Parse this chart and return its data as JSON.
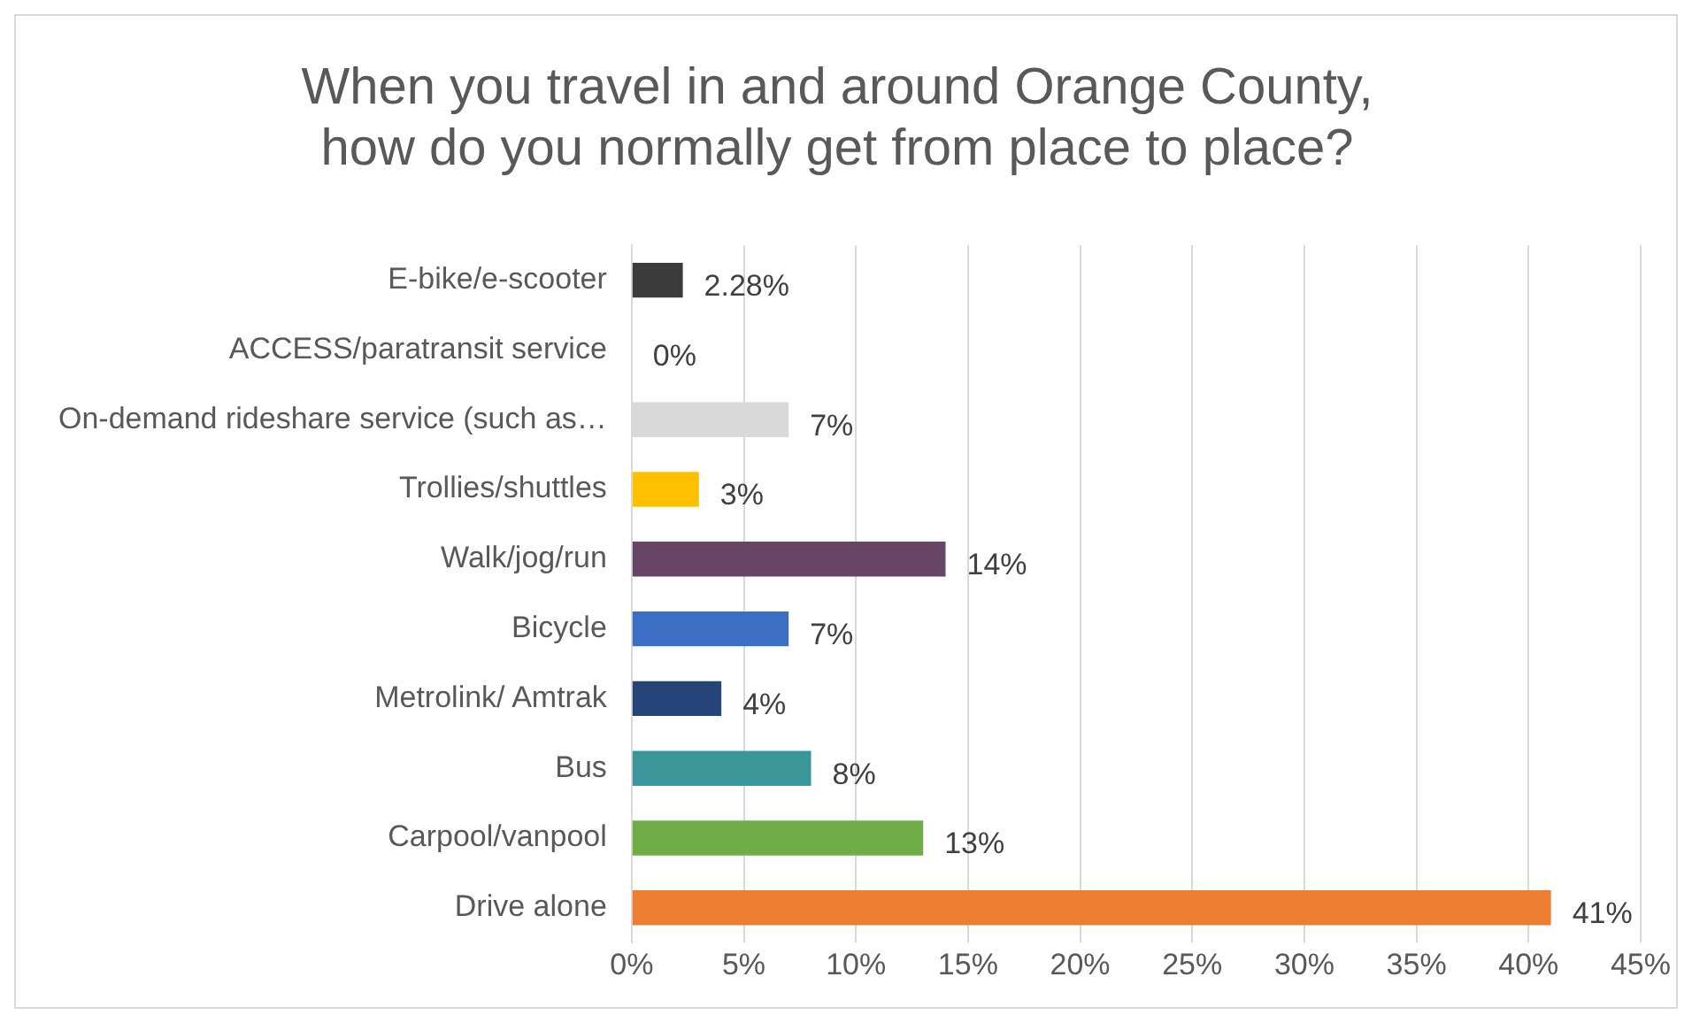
{
  "chart_data": {
    "type": "bar",
    "orientation": "horizontal",
    "title": [
      "When you travel in and around Orange County,",
      "how do you normally get from place to place?"
    ],
    "categories": [
      "E-bike/e-scooter",
      "ACCESS/paratransit service",
      "On-demand rideshare service (such as…",
      "Trollies/shuttles",
      "Walk/jog/run",
      "Bicycle",
      "Metrolink/ Amtrak",
      "Bus",
      "Carpool/vanpool",
      "Drive alone"
    ],
    "values": [
      2.28,
      0,
      7,
      3,
      14,
      7,
      4,
      8,
      13,
      41
    ],
    "colors": [
      "#3b3b3b",
      "#a5a5a5",
      "#d9d9d9",
      "#ffc000",
      "#674665",
      "#3a6fc4",
      "#264478",
      "#3a9799",
      "#70ad47",
      "#ed7d31"
    ],
    "value_labels": [
      "2.28%",
      "0%",
      "7%",
      "3%",
      "14%",
      "7%",
      "4%",
      "8%",
      "13%",
      "41%"
    ],
    "xlim": [
      0,
      45
    ],
    "xticks": [
      {
        "value": 0,
        "label": "0%"
      },
      {
        "value": 5,
        "label": "5%"
      },
      {
        "value": 10,
        "label": "10%"
      },
      {
        "value": 15,
        "label": "15%"
      },
      {
        "value": 20,
        "label": "20%"
      },
      {
        "value": 25,
        "label": "25%"
      },
      {
        "value": 30,
        "label": "30%"
      },
      {
        "value": 35,
        "label": "35%"
      },
      {
        "value": 40,
        "label": "40%"
      },
      {
        "value": 45,
        "label": "45%"
      }
    ],
    "grid": "x",
    "legend": false
  }
}
